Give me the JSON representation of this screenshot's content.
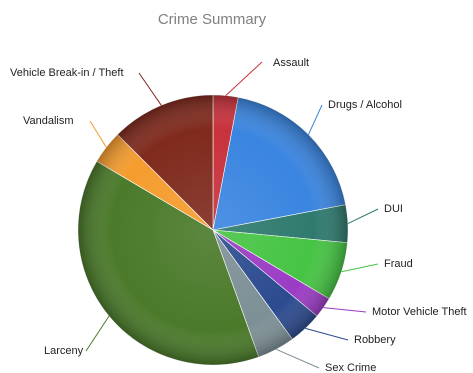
{
  "chart_data": {
    "type": "pie",
    "title": "Crime Summary",
    "legend": "none",
    "slices": [
      {
        "label": "Assault",
        "value": 3.0,
        "color": "#c8323c"
      },
      {
        "label": "Drugs / Alcohol",
        "value": 19.0,
        "color": "#3a85e0"
      },
      {
        "label": "DUI",
        "value": 4.5,
        "color": "#2f7a6e"
      },
      {
        "label": "Fraud",
        "value": 7.0,
        "color": "#46c444"
      },
      {
        "label": "Motor Vehicle Theft",
        "value": 2.5,
        "color": "#9b3cc4"
      },
      {
        "label": "Robbery",
        "value": 4.0,
        "color": "#2c4b8f"
      },
      {
        "label": "Sex Crime",
        "value": 4.5,
        "color": "#7d9096"
      },
      {
        "label": "Larceny",
        "value": 39.0,
        "color": "#4a7a2a"
      },
      {
        "label": "Vandalism",
        "value": 4.0,
        "color": "#f59c2e"
      },
      {
        "label": "Vehicle Break-in / Theft",
        "value": 12.5,
        "color": "#7f2a1d"
      }
    ]
  }
}
